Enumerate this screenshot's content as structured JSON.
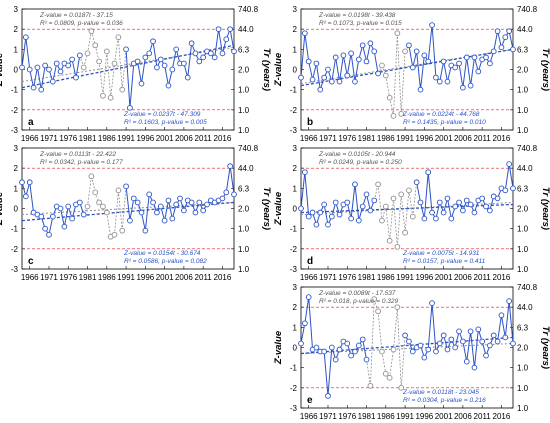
{
  "colors": {
    "line_a": "#2b53c8",
    "line_b": "#8f8f8f",
    "ref_line": "#e0201c",
    "trend_a": "#2b53c8",
    "trend_b": "#8f8f8f"
  },
  "axis_labels": {
    "y_left": "Z-value",
    "y_right": "Tr (years)"
  },
  "x_tick_labels": [
    "1966",
    "1971",
    "1976",
    "1981",
    "1986",
    "1991",
    "1996",
    "2001",
    "2006",
    "2011",
    "2016"
  ],
  "y_left_tick_labels": [
    "3",
    "2",
    "1",
    "0",
    "-1",
    "-2",
    "-3"
  ],
  "y_right_tick_labels": [
    "740.8",
    "44.0",
    "6.3",
    "2.0",
    "1.0",
    "1.0",
    "1.0"
  ],
  "panels": [
    {
      "letter": "a",
      "gray_eq1": "Z-value = 0.0187t - 37.15",
      "gray_eq2": "R² = 0.0809, p-value = 0.036",
      "blue_eq1": "Z-value = 0.0237t - 47.309",
      "blue_eq2": "R² = 0.1603, p-value = 0.005"
    },
    {
      "letter": "b",
      "gray_eq1": "Z-value = 0.0198t - 39.438",
      "gray_eq2": "R² = 0.1073, p-value = 0.015",
      "blue_eq1": "Z-value = 0.0224t - 44.768",
      "blue_eq2": "R² = 0.1435, p-value = 0.010"
    },
    {
      "letter": "c",
      "gray_eq1": "Z-value = 0.0113t - 22.422",
      "gray_eq2": "R² = 0.0342, p-value = 0.177",
      "blue_eq1": "Z-value = 0.0154t - 30.674",
      "blue_eq2": "R² = 0.0586, p-value = 0.082"
    },
    {
      "letter": "d",
      "gray_eq1": "Z-value = 0.0105t - 20.944",
      "gray_eq2": "R² = 0.0249, p-value = 0.250",
      "blue_eq1": "Z-value = 0.0075t - 14.931",
      "blue_eq2": "R² = 0.0157, p-value = 0.411"
    },
    {
      "letter": "e",
      "gray_eq1": "Z-value = 0.0089t - 17.537",
      "gray_eq2": "R² = 0.018, p-value = 0.329",
      "blue_eq1": "Z-value = 0.0118t - 23.045",
      "blue_eq2": "R² = 0.0304, p-value = 0.216"
    }
  ],
  "chart_data": [
    {
      "type": "line",
      "panel": "a",
      "xlim": [
        1966,
        2021
      ],
      "ylim": [
        -3,
        3
      ],
      "ylabel": "Z-value",
      "y2label": "Tr (years)",
      "reference_lines": [
        2,
        -2
      ],
      "gray_segment": [
        1981,
        1993
      ],
      "series": [
        {
          "values": [
            0.1,
            1.6,
            0.0,
            -0.9,
            0.1,
            -1.0,
            0.2,
            0.0,
            -0.6,
            0.3,
            -0.1,
            0.3,
            0.2,
            0.5,
            -0.4,
            0.7,
            0.1,
            0.8,
            1.9,
            1.2,
            0.4,
            -1.3,
            0.9,
            -1.4,
            0.3,
            1.6,
            -1.0,
            1.0,
            -1.9,
            0.3,
            0.4,
            -0.7,
            0.6,
            0.8,
            1.4,
            0.1,
            0.5,
            0.2,
            -0.8,
            0.0,
            1.0,
            0.3,
            0.3,
            -0.4,
            1.3,
            0.8,
            0.4,
            0.6,
            0.9,
            0.8,
            0.6,
            2.0,
            0.8,
            1.5,
            2.0,
            0.9
          ]
        }
      ],
      "trend_gray": [
        -0.6,
        1.1
      ],
      "trend_blue": [
        -0.9,
        1.2
      ]
    },
    {
      "type": "line",
      "panel": "b",
      "xlim": [
        1966,
        2021
      ],
      "ylim": [
        -3,
        3
      ],
      "ylabel": "Z-value",
      "y2label": "Tr (years)",
      "reference_lines": [
        2,
        -2
      ],
      "gray_segment": [
        1986,
        1994
      ],
      "series": [
        {
          "values": [
            -0.4,
            1.8,
            0.4,
            -0.5,
            0.3,
            -1.0,
            -0.4,
            0.0,
            -0.6,
            0.6,
            -0.6,
            0.7,
            -0.3,
            0.8,
            -0.6,
            0.5,
            1.2,
            0.4,
            1.3,
            0.9,
            -0.2,
            0.2,
            -0.3,
            -1.4,
            -2.3,
            1.8,
            -2.2,
            0.9,
            1.2,
            0.1,
            0.9,
            -1.0,
            0.7,
            0.4,
            2.2,
            -0.4,
            -0.6,
            0.4,
            -0.6,
            0.2,
            0.1,
            0.3,
            -0.9,
            0.6,
            -0.8,
            0.6,
            -0.1,
            0.5,
            0.6,
            0.3,
            0.9,
            1.9,
            1.1,
            1.6,
            1.9,
            1.0
          ]
        }
      ],
      "trend_gray": [
        -0.7,
        1.0
      ],
      "trend_blue": [
        -0.8,
        1.0
      ]
    },
    {
      "type": "line",
      "panel": "c",
      "xlim": [
        1966,
        2021
      ],
      "ylim": [
        -3,
        3
      ],
      "ylabel": "Z-value",
      "y2label": "Tr (years)",
      "reference_lines": [
        2,
        -2
      ],
      "gray_segment": [
        1982,
        1993
      ],
      "series": [
        {
          "values": [
            1.3,
            0.6,
            1.3,
            -0.2,
            -0.3,
            -0.4,
            -1.0,
            -1.3,
            -0.4,
            0.1,
            0.0,
            -0.9,
            0.1,
            -0.5,
            0.2,
            0.3,
            -0.3,
            0.1,
            1.6,
            0.8,
            0.3,
            0.1,
            -0.2,
            -1.4,
            -1.3,
            0.9,
            -1.1,
            1.1,
            -0.6,
            0.5,
            0.3,
            -0.2,
            -1.1,
            0.7,
            0.3,
            -0.2,
            0.1,
            -0.6,
            0.4,
            -0.5,
            0.2,
            0.5,
            -0.1,
            0.4,
            0.3,
            -0.2,
            0.3,
            -0.1,
            0.2,
            0.4,
            0.3,
            0.4,
            0.5,
            0.8,
            2.1,
            0.7
          ]
        }
      ],
      "trend_gray": [
        -0.3,
        0.3
      ],
      "trend_blue": [
        -0.6,
        0.3
      ]
    },
    {
      "type": "line",
      "panel": "d",
      "xlim": [
        1966,
        2021
      ],
      "ylim": [
        -3,
        3
      ],
      "ylabel": "Z-value",
      "y2label": "Tr (years)",
      "reference_lines": [
        2,
        -2
      ],
      "gray_segment": [
        1985,
        1996
      ],
      "series": [
        {
          "values": [
            0.0,
            1.8,
            -0.4,
            -0.2,
            -0.8,
            -0.2,
            0.2,
            -0.8,
            -0.4,
            0.3,
            -0.3,
            0.2,
            0.3,
            -0.5,
            1.2,
            -0.6,
            0.1,
            0.7,
            -0.1,
            0.4,
            1.2,
            -0.6,
            0.1,
            -1.6,
            0.5,
            -1.9,
            0.7,
            -1.2,
            0.9,
            -0.4,
            1.3,
            0.3,
            -0.5,
            1.8,
            -0.2,
            -0.5,
            0.3,
            -0.2,
            0.5,
            -0.5,
            0.1,
            0.3,
            -0.1,
            0.4,
            0.2,
            -0.2,
            0.4,
            0.5,
            0.1,
            -0.1,
            0.6,
            0.5,
            1.0,
            0.9,
            2.2,
            1.0
          ]
        }
      ],
      "trend_gray": [
        -0.3,
        0.3
      ],
      "trend_blue": [
        -0.2,
        0.2
      ]
    },
    {
      "type": "line",
      "panel": "e",
      "xlim": [
        1966,
        2021
      ],
      "ylim": [
        -3,
        3
      ],
      "ylabel": "Z-value",
      "y2label": "Tr (years)",
      "reference_lines": [
        2,
        -2
      ],
      "gray_segment": [
        1983,
        1993
      ],
      "series": [
        {
          "values": [
            0.2,
            1.2,
            2.5,
            -0.1,
            0.0,
            -0.2,
            -0.2,
            -2.4,
            0.0,
            -0.6,
            -0.1,
            0.3,
            0.2,
            -0.4,
            -0.2,
            0.1,
            0.4,
            -0.6,
            -1.9,
            2.4,
            1.8,
            -0.2,
            -1.3,
            -1.5,
            -0.1,
            2.0,
            -2.0,
            0.6,
            0.3,
            -0.2,
            0.0,
            0.1,
            -0.5,
            -0.1,
            2.2,
            -0.2,
            0.2,
            0.6,
            -0.1,
            0.4,
            0.0,
            0.8,
            0.3,
            -0.7,
            0.8,
            -1.0,
            0.9,
            0.3,
            -0.4,
            0.1,
            0.6,
            0.3,
            1.6,
            0.5,
            2.3,
            0.2
          ]
        }
      ],
      "trend_gray": [
        -0.3,
        0.2
      ],
      "trend_blue": [
        -0.3,
        0.5
      ]
    }
  ]
}
